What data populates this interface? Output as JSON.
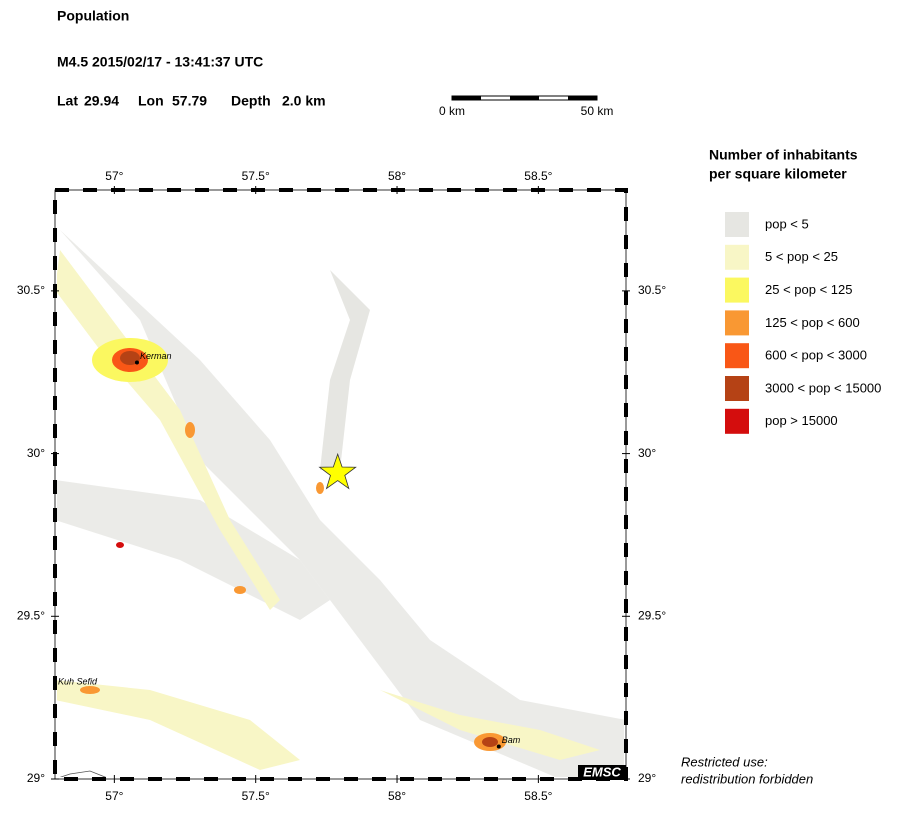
{
  "header": {
    "title": "Population",
    "event": "M4.5  2015/02/17 - 13:41:37 UTC",
    "lat_label": "Lat",
    "lat": 29.94,
    "lon_label": "Lon",
    "lon": 57.79,
    "depth_label": "Depth",
    "depth": "2.0 km"
  },
  "scale_bar": {
    "start": "0 km",
    "end": "50 km"
  },
  "map": {
    "lonlim": [
      56.79,
      58.81
    ],
    "latlim": [
      29.0,
      30.81
    ],
    "lonticks": [
      {
        "value": 57,
        "label": "57°"
      },
      {
        "value": 57.5,
        "label": "57.5°"
      },
      {
        "value": 58,
        "label": "58°"
      },
      {
        "value": 58.5,
        "label": "58.5°"
      }
    ],
    "latticks": [
      {
        "value": 29,
        "label": "29°"
      },
      {
        "value": 29.5,
        "label": "29.5°"
      },
      {
        "value": 30,
        "label": "30°"
      },
      {
        "value": 30.5,
        "label": "30.5°"
      }
    ],
    "cities": [
      {
        "name": "Kerman",
        "lon": 57.08,
        "lat": 30.28
      },
      {
        "name": "Kuh Sefid",
        "lon": 56.79,
        "lat": 29.28
      },
      {
        "name": "Bam",
        "lon": 58.36,
        "lat": 29.1
      }
    ],
    "badge": "EMSC"
  },
  "legend": {
    "title": [
      "Number of inhabitants",
      "per square kilometer"
    ],
    "items": [
      {
        "label": "pop < 5",
        "color": "#e6e6e2"
      },
      {
        "label": "5 < pop < 25",
        "color": "#f8f6c6"
      },
      {
        "label": "25 < pop < 125",
        "color": "#fbf860"
      },
      {
        "label": "125 < pop < 600",
        "color": "#f99833"
      },
      {
        "label": "600 < pop < 3000",
        "color": "#f95716"
      },
      {
        "label": "3000 < pop < 15000",
        "color": "#b54215"
      },
      {
        "label": "pop > 15000",
        "color": "#d40d0d"
      }
    ]
  },
  "notice": [
    "Restricted use:",
    "redistribution forbidden"
  ]
}
